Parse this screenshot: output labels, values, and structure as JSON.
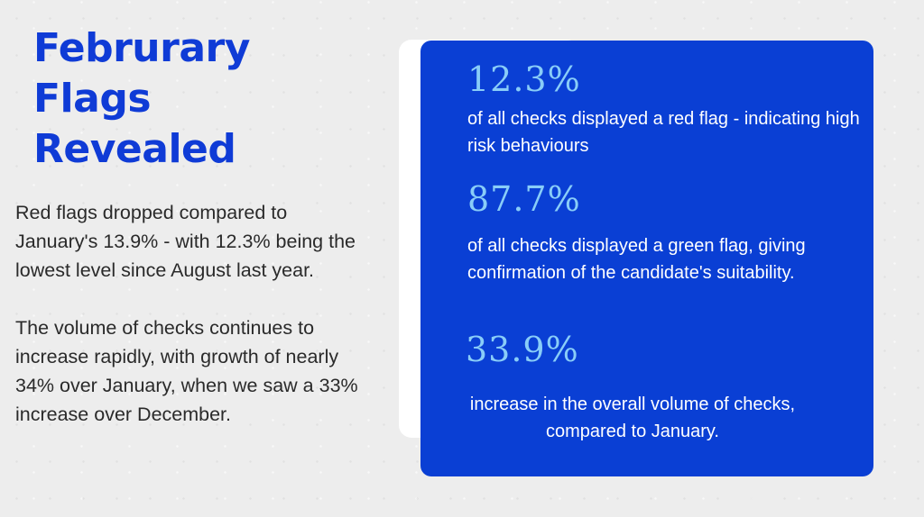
{
  "title": {
    "line1": "Februrary",
    "line2": "Flags",
    "line3": "Revealed"
  },
  "body": {
    "paragraph1": "Red flags dropped compared to January's 13.9% - with 12.3% being the lowest level since August last year.",
    "paragraph2": "The volume of checks continues to increase rapidly, with growth of nearly 34% over January, when we saw a 33% increase over December."
  },
  "stats": [
    {
      "value": "12.3%",
      "description": "of all checks displayed a red flag - indicating high risk behaviours"
    },
    {
      "value": "87.7%",
      "description": "of all checks displayed a green flag, giving confirmation of the candidate's suitability."
    },
    {
      "value": "33.9%",
      "description": "increase in the overall volume of checks, compared to January."
    }
  ],
  "colors": {
    "background": "#ededed",
    "title": "#0f3bd6",
    "card": "#0a3fd4",
    "stat_value": "#89cdf8",
    "stat_text": "#ffffff"
  }
}
